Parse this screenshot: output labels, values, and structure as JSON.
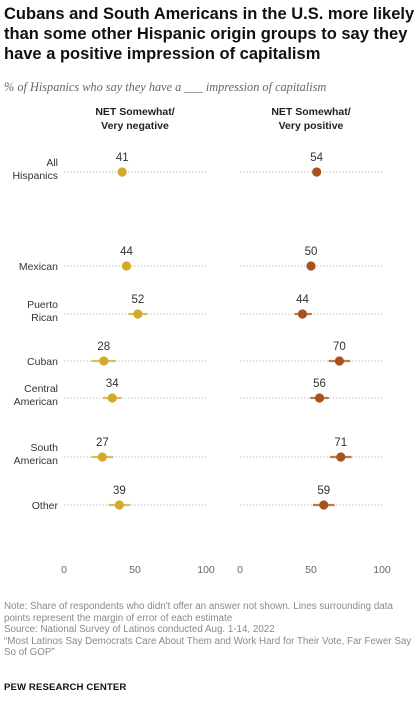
{
  "title": "Cubans and South Americans in the U.S. more likely than some other Hispanic origin groups to say they have a positive impression of capitalism",
  "subtitle": "% of Hispanics who say they have a ___ impression of capitalism",
  "note": "Note: Share of respondents who didn't offer an answer not shown. Lines surrounding data points represent the margin of error of each estimate",
  "source": "Source: National Survey of Latinos conducted Aug. 1-14, 2022",
  "report": "“Most Latinos Say Democrats Care About Them and Work Hard for Their Vote, Far Fewer Say So of GOP”",
  "organization": "PEW RESEARCH CENTER",
  "colors": {
    "negative": "#d4a92a",
    "positive": "#a9521f",
    "dots": "#b8b8b8",
    "axis_text": "#666666"
  },
  "chart_data": {
    "type": "scatter",
    "categories": [
      "All Hispanics",
      "Mexican",
      "Puerto Rican",
      "Cuban",
      "Central American",
      "South American",
      "Other"
    ],
    "xlim": [
      0,
      100
    ],
    "xticks": [
      0,
      50,
      100
    ],
    "series": [
      {
        "name": "NET Somewhat/ Very negative",
        "values": [
          41,
          44,
          52,
          28,
          34,
          27,
          39
        ],
        "moe_low": [
          40,
          42,
          46,
          20,
          28,
          20,
          32
        ],
        "moe_high": [
          42,
          46,
          58,
          36,
          40,
          34,
          46
        ]
      },
      {
        "name": "NET Somewhat/ Very positive",
        "values": [
          54,
          50,
          44,
          70,
          56,
          71,
          59
        ],
        "moe_low": [
          53,
          48,
          39,
          63,
          50,
          64,
          52
        ],
        "moe_high": [
          55,
          52,
          50,
          77,
          62,
          78,
          66
        ]
      }
    ]
  }
}
